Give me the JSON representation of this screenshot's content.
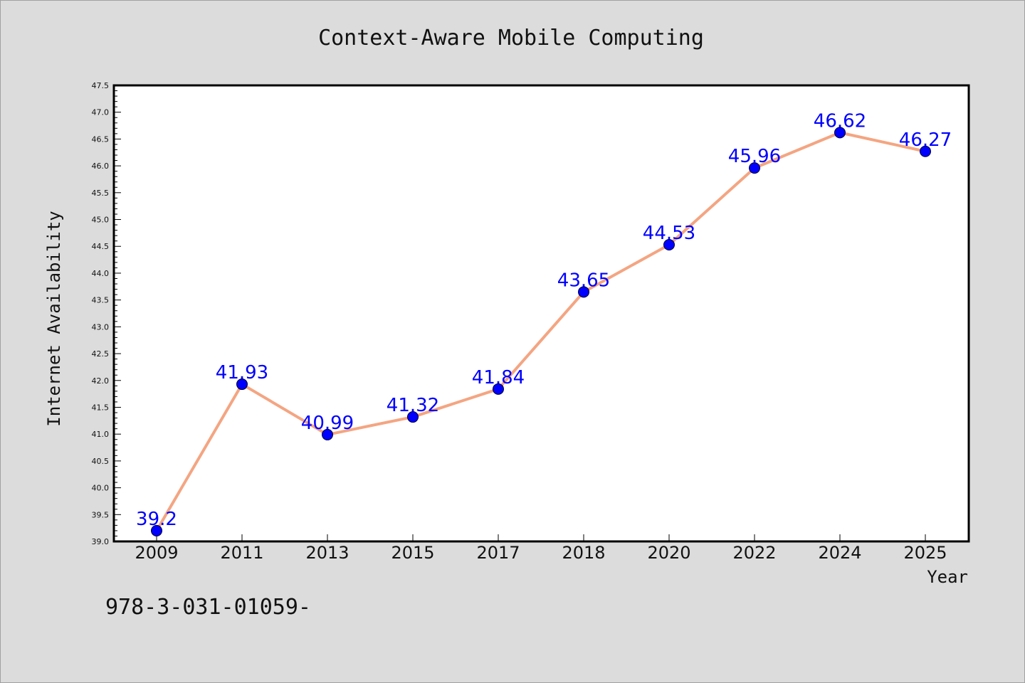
{
  "chart_data": {
    "type": "line",
    "title": "Context-Aware Mobile Computing",
    "xlabel": "Year",
    "ylabel": "Internet Availability",
    "categories": [
      "2009",
      "2011",
      "2013",
      "2015",
      "2017",
      "2018",
      "2020",
      "2022",
      "2024",
      "2025"
    ],
    "series": [
      {
        "values": [
          39.2,
          41.93,
          40.99,
          41.32,
          41.84,
          43.65,
          44.53,
          45.96,
          46.62,
          46.27
        ],
        "labels": [
          "39.2",
          "41.93",
          "40.99",
          "41.32",
          "41.84",
          "43.65",
          "44.53",
          "45.96",
          "46.62",
          "46.27"
        ],
        "line_color": "#f4a582",
        "marker_color": "#0000ff"
      }
    ],
    "ylim": [
      39.0,
      47.5
    ],
    "yticks": [
      "39.0",
      "39.5",
      "40.0",
      "40.5",
      "41.0",
      "41.5",
      "42.0",
      "42.5",
      "43.0",
      "43.5",
      "44.0",
      "44.5",
      "45.0",
      "45.5",
      "46.0",
      "46.5",
      "47.0",
      "47.5"
    ],
    "grid": false,
    "data_label_color": "#0000ff",
    "background_color": "#dcdcdc",
    "plot_background_color": "#ffffff"
  },
  "footnote": "978-3-031-01059-"
}
